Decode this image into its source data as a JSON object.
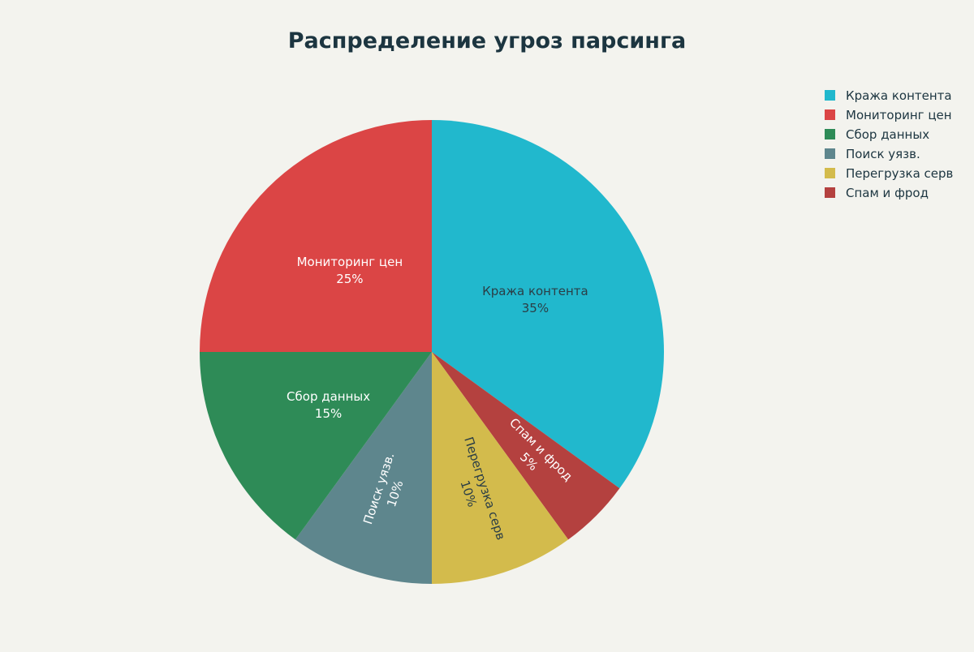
{
  "chart_data": {
    "type": "pie",
    "title": "Распределение угроз парсинга",
    "start_angle_deg": 0,
    "direction": "clockwise",
    "legend_position": "top-right",
    "slices": [
      {
        "label": "Кража контента",
        "value": 35,
        "pct_label": "35%",
        "color": "#21b8cd",
        "text_color": "#2b3e46"
      },
      {
        "label": "Спам и фрод",
        "value": 5,
        "pct_label": "5%",
        "color": "#b4413f",
        "text_color": "#ffffff"
      },
      {
        "label": "Перегрузка серв",
        "value": 10,
        "pct_label": "10%",
        "color": "#d3bb4c",
        "text_color": "#2b3e46"
      },
      {
        "label": "Поиск уязв.",
        "value": 10,
        "pct_label": "10%",
        "color": "#5e868d",
        "text_color": "#ffffff"
      },
      {
        "label": "Сбор данных",
        "value": 15,
        "pct_label": "15%",
        "color": "#2e8b57",
        "text_color": "#ffffff"
      },
      {
        "label": "Мониторинг цен",
        "value": 25,
        "pct_label": "25%",
        "color": "#db4545",
        "text_color": "#ffffff"
      }
    ],
    "legend": [
      {
        "label": "Кража контента",
        "color": "#21b8cd"
      },
      {
        "label": "Мониторинг цен",
        "color": "#db4545"
      },
      {
        "label": "Сбор данных",
        "color": "#2e8b57"
      },
      {
        "label": "Поиск уязв.",
        "color": "#5e868d"
      },
      {
        "label": "Перегрузка серв",
        "color": "#d3bb4c"
      },
      {
        "label": "Спам и фрод",
        "color": "#b4413f"
      }
    ]
  }
}
